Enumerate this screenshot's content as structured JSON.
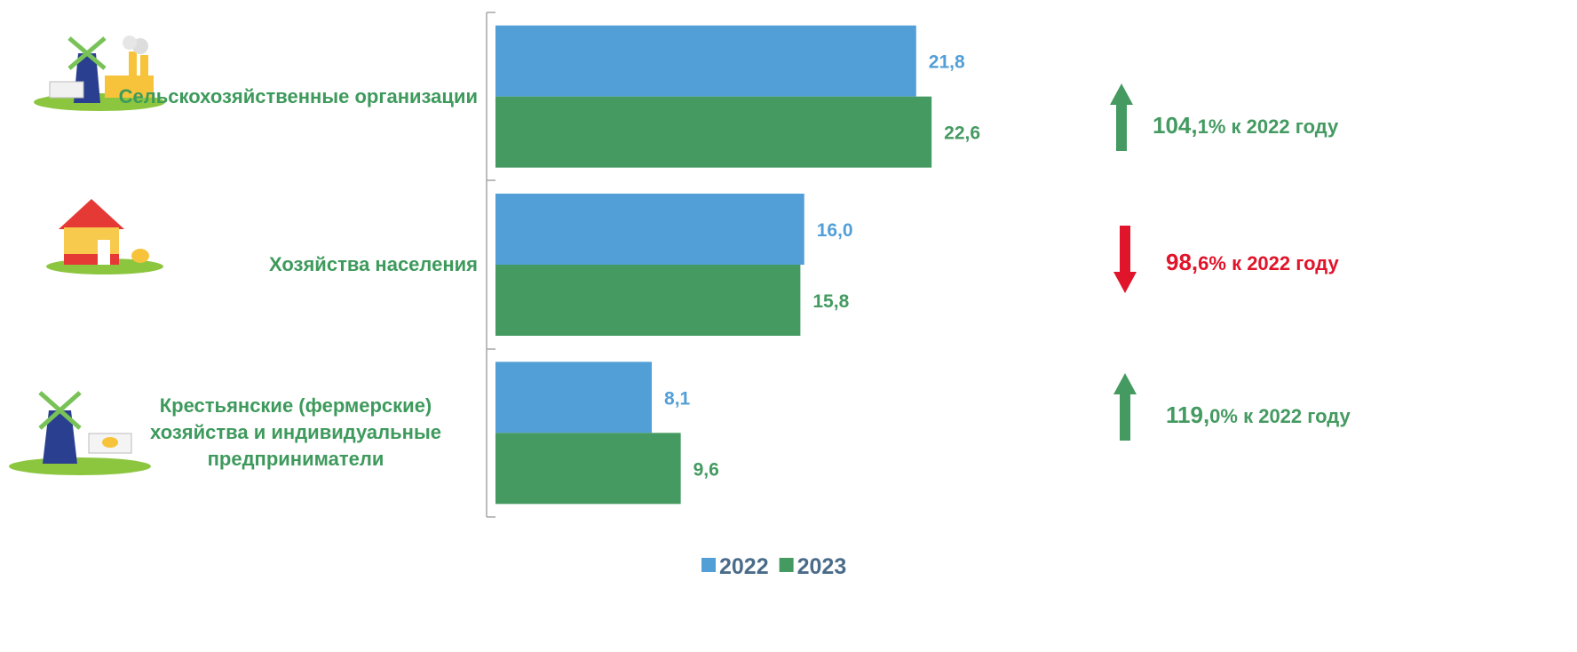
{
  "chart_data": {
    "type": "hbar",
    "categories": [
      "Сельскохозяйственные организации",
      "Хозяйства населения",
      "Крестьянские (фермерские) хозяйства и индивидуальные предприниматели"
    ],
    "category_color": "#3e9a5c",
    "series": [
      {
        "name": "2022",
        "color": "#529fd7",
        "values": [
          21.8,
          16.0,
          8.1
        ],
        "value_labels": [
          "21,8",
          "16,0",
          "8,1"
        ]
      },
      {
        "name": "2023",
        "color": "#449a61",
        "values": [
          22.6,
          15.8,
          9.6
        ],
        "value_labels": [
          "22,6",
          "15,8",
          "9,6"
        ]
      }
    ],
    "xlim": [
      0,
      30
    ],
    "legend_color": "#4a6b8a",
    "annotations": [
      {
        "lead": "104,",
        "rest": "1% к 2022 году",
        "direction": "up",
        "color": "#449a61"
      },
      {
        "lead": "98,",
        "rest": "6% к 2022 году",
        "direction": "down",
        "color": "#e0142b"
      },
      {
        "lead": "119,",
        "rest": "0% к 2022 году",
        "direction": "up",
        "color": "#449a61"
      }
    ]
  }
}
